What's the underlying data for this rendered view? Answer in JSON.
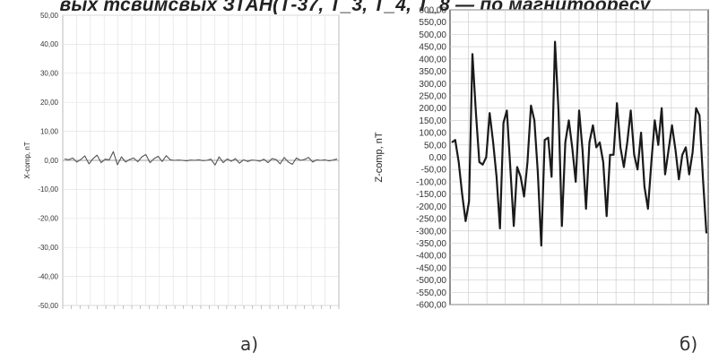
{
  "top_caption": "вых тсвимсвых ЗТАН(Т-37, Т_3, Т_4, Т_8 — по магнитооресу",
  "chart_data": [
    {
      "type": "line",
      "panel_label": "а)",
      "ylabel": "X-comp, nT",
      "ylim": [
        -50,
        50
      ],
      "yticks": [
        "50,00",
        "40,00",
        "30,00",
        "20,00",
        "10,00",
        "0,00",
        "-10,00",
        "-20,00",
        "-30,00",
        "-40,00",
        "-50,00"
      ],
      "ytick_values": [
        50,
        40,
        30,
        20,
        10,
        0,
        -10,
        -20,
        -30,
        -40,
        -50
      ],
      "grid": true,
      "y": [
        0.5,
        0.2,
        0.8,
        -0.6,
        0.3,
        1.5,
        -1.2,
        0.6,
        1.8,
        -0.8,
        0.4,
        0.2,
        3.0,
        -1.5,
        1.2,
        -0.6,
        0.3,
        0.8,
        -0.5,
        1.2,
        2.0,
        -0.8,
        0.6,
        1.4,
        -0.4,
        1.6,
        0.2,
        0.0,
        0.1,
        0.0,
        -0.2,
        0.1,
        0.0,
        0.2,
        -0.1,
        0.0,
        0.4,
        -1.6,
        1.2,
        -0.8,
        0.5,
        -0.3,
        0.6,
        -1.0,
        0.2,
        -0.4,
        0.1,
        0.0,
        -0.3,
        0.4,
        -0.8,
        0.6,
        0.3,
        -1.2,
        1.0,
        -0.6,
        -1.4,
        0.8,
        0.0,
        0.3,
        1.0,
        -0.6,
        0.2,
        0.0,
        0.2,
        -0.2,
        0.1,
        0.5
      ]
    },
    {
      "type": "line",
      "panel_label": "б)",
      "ylabel": "Z-comp, nT",
      "ylim": [
        -600,
        600
      ],
      "yticks": [
        "600,00",
        "550,00",
        "500,00",
        "450,00",
        "400,00",
        "350,00",
        "300,00",
        "250,00",
        "200,00",
        "150,00",
        "100,00",
        "50,00",
        "0,00",
        "-50,00",
        "-100,00",
        "-150,00",
        "-200,00",
        "-250,00",
        "-300,00",
        "-350,00",
        "-400,00",
        "-450,00",
        "-500,00",
        "-550,00",
        "-600,00"
      ],
      "ytick_values": [
        600,
        550,
        500,
        450,
        400,
        350,
        300,
        250,
        200,
        150,
        100,
        50,
        0,
        -50,
        -100,
        -150,
        -200,
        -250,
        -300,
        -350,
        -400,
        -450,
        -500,
        -550,
        -600
      ],
      "grid": true,
      "y": [
        60,
        70,
        -20,
        -150,
        -260,
        -180,
        420,
        180,
        -20,
        -30,
        0,
        180,
        60,
        -80,
        -290,
        140,
        190,
        -40,
        -280,
        -40,
        -80,
        -160,
        -20,
        210,
        150,
        -60,
        -360,
        70,
        80,
        -80,
        470,
        190,
        -280,
        60,
        150,
        40,
        -100,
        190,
        30,
        -210,
        60,
        130,
        40,
        60,
        -20,
        -240,
        10,
        10,
        220,
        40,
        -40,
        60,
        190,
        10,
        -50,
        100,
        -120,
        -210,
        -20,
        150,
        50,
        200,
        -70,
        30,
        130,
        30,
        -90,
        10,
        40,
        -70,
        20,
        200,
        170,
        -90,
        -310
      ]
    }
  ]
}
